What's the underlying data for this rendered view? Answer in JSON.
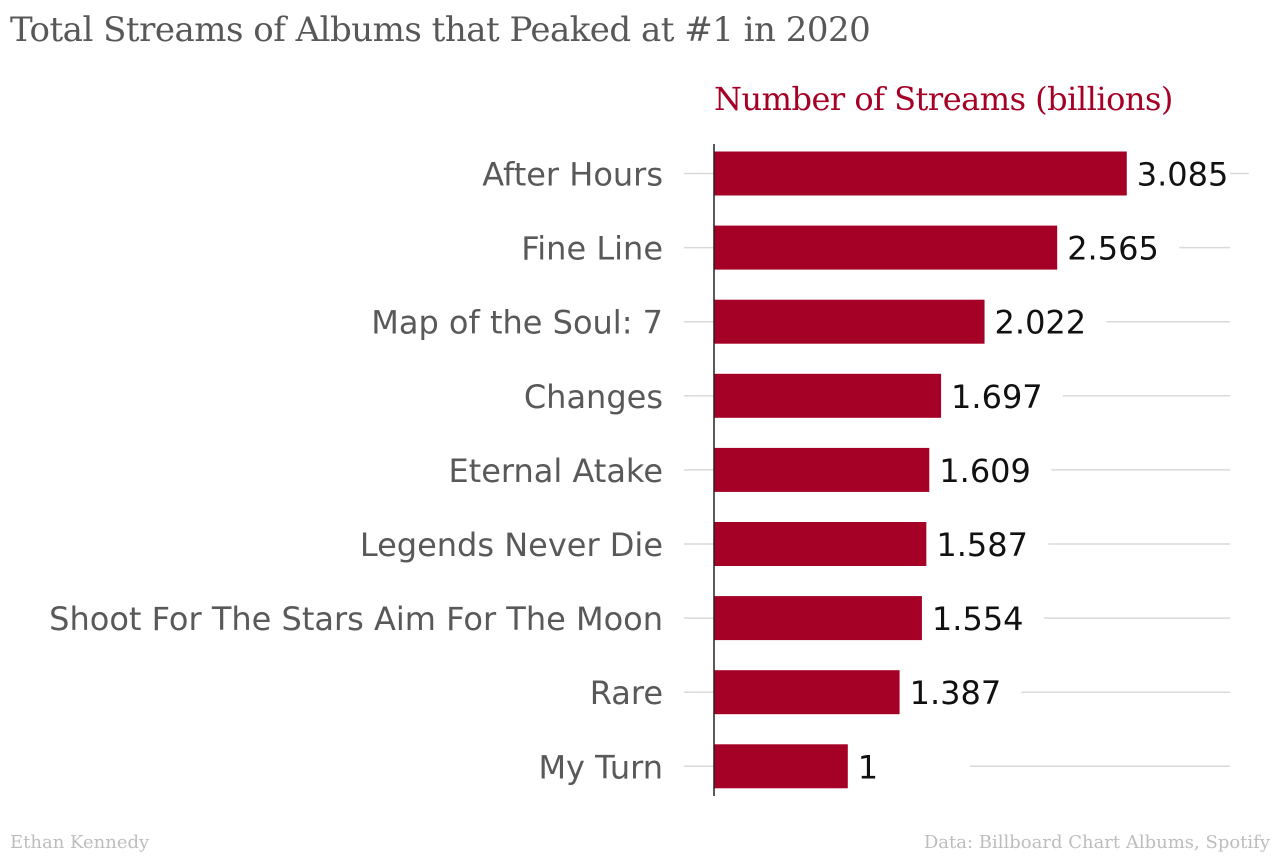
{
  "title": "Total Streams of Albums that Peaked at #1 in 2020",
  "footer": {
    "author": "Ethan Kennedy",
    "source": "Data: Billboard Chart Albums, Spotify"
  },
  "colors": {
    "bar": "#a50026",
    "series_header": "#a50026",
    "title": "#585858",
    "category_label": "#595959",
    "value_label": "#111111",
    "gridline": "#d9d9d9",
    "axis": "#222222",
    "footer": "#bdbdbd"
  },
  "chart_data": {
    "type": "bar",
    "orientation": "horizontal",
    "title": "Total Streams of Albums that Peaked at #1 in 2020",
    "series_header": "Number of Streams (billions)",
    "categories": [
      "After Hours",
      "Fine Line",
      "Map of the Soul: 7",
      "Changes",
      "Eternal Atake",
      "Legends Never Die",
      "Shoot For The Stars Aim For The Moon",
      "Rare",
      "My Turn"
    ],
    "values": [
      3.085,
      2.565,
      2.022,
      1.697,
      1.609,
      1.587,
      1.554,
      1.387,
      1
    ],
    "value_labels": [
      "3.085",
      "2.565",
      "2.022",
      "1.697",
      "1.609",
      "1.587",
      "1.554",
      "1.387",
      "1"
    ],
    "xlim": [
      0,
      4
    ],
    "grid": true,
    "legend": "none"
  }
}
